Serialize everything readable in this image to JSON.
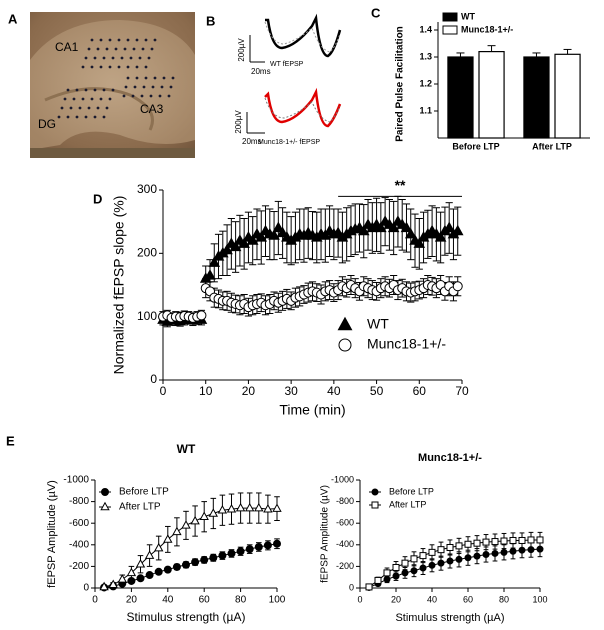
{
  "panel_labels": [
    "A",
    "B",
    "C",
    "D",
    "E"
  ],
  "panel_a": {
    "regions": [
      "CA1",
      "CA3",
      "DG"
    ]
  },
  "panel_b": {
    "scale_bars": [
      {
        "v": "200µV",
        "h": "20ms"
      },
      {
        "v": "200µV",
        "h": "20ms"
      }
    ],
    "trace_labels": [
      "WT fEPSP",
      "Munc18-1+/- fEPSP"
    ]
  },
  "chart_data": [
    {
      "type": "bar",
      "ylabel": "Paired Pulse Facilitation",
      "categories": [
        "Before LTP",
        "After LTP"
      ],
      "series": [
        {
          "name": "WT",
          "color": "#000000",
          "values": [
            1.3,
            1.3
          ],
          "errors": [
            0.015,
            0.015
          ]
        },
        {
          "name": "Munc18-1+/-",
          "color": "#ffffff",
          "values": [
            1.32,
            1.31
          ],
          "errors": [
            0.022,
            0.018
          ]
        }
      ],
      "ylim": [
        1.0,
        1.4
      ],
      "yticks": [
        1.1,
        1.2,
        1.3,
        1.4
      ],
      "legend": "upper left"
    },
    {
      "type": "scatter",
      "ylabel": "Normalized fEPSP slope (%)",
      "xlabel": "Time (min)",
      "x": [
        0,
        1,
        2,
        3,
        4,
        5,
        6,
        7,
        8,
        9,
        10,
        11,
        12,
        13,
        14,
        15,
        16,
        17,
        18,
        19,
        20,
        21,
        22,
        23,
        24,
        25,
        26,
        27,
        28,
        29,
        30,
        31,
        32,
        33,
        34,
        35,
        36,
        37,
        38,
        39,
        40,
        41,
        42,
        43,
        44,
        45,
        46,
        47,
        48,
        49,
        50,
        51,
        52,
        53,
        54,
        55,
        56,
        57,
        58,
        59,
        60,
        61,
        62,
        63,
        64,
        65,
        66,
        67,
        68,
        69
      ],
      "series": [
        {
          "name": "WT",
          "color": "#000000",
          "marker": "triangle",
          "marker_fill": "#000000",
          "values": [
            95,
            92,
            96,
            94,
            93,
            95,
            97,
            94,
            96,
            95,
            160,
            165,
            185,
            195,
            200,
            205,
            215,
            210,
            220,
            215,
            225,
            220,
            230,
            225,
            235,
            230,
            228,
            240,
            232,
            225,
            220,
            225,
            230,
            228,
            232,
            228,
            225,
            230,
            228,
            235,
            230,
            232,
            225,
            230,
            235,
            238,
            240,
            235,
            245,
            240,
            245,
            240,
            250,
            245,
            240,
            250,
            245,
            240,
            230,
            220,
            215,
            225,
            230,
            235,
            230,
            225,
            235,
            240,
            230,
            235
          ],
          "errors": [
            8,
            8,
            8,
            8,
            8,
            8,
            8,
            8,
            8,
            8,
            20,
            25,
            30,
            35,
            35,
            40,
            40,
            40,
            40,
            40,
            40,
            38,
            40,
            42,
            40,
            40,
            38,
            42,
            40,
            40,
            38,
            40,
            40,
            42,
            40,
            38,
            40,
            40,
            42,
            40,
            40,
            38,
            40,
            42,
            40,
            40,
            38,
            42,
            40,
            40,
            42,
            40,
            38,
            40,
            42,
            40,
            40,
            38,
            40,
            42,
            40,
            40,
            38,
            40,
            42,
            40,
            38,
            40,
            40,
            38
          ]
        },
        {
          "name": "Munc18-1+/-",
          "color": "#000000",
          "marker": "circle",
          "marker_fill": "#ffffff",
          "values": [
            100,
            102,
            98,
            100,
            99,
            101,
            100,
            98,
            100,
            102,
            145,
            140,
            130,
            128,
            125,
            125,
            122,
            120,
            118,
            120,
            115,
            118,
            120,
            122,
            118,
            120,
            125,
            122,
            125,
            128,
            125,
            130,
            132,
            135,
            138,
            140,
            138,
            135,
            140,
            142,
            138,
            142,
            148,
            145,
            150,
            145,
            140,
            148,
            145,
            142,
            140,
            145,
            148,
            145,
            150,
            142,
            145,
            140,
            138,
            140,
            142,
            145,
            150,
            148,
            145,
            150,
            140,
            148,
            140,
            148
          ],
          "errors": [
            8,
            8,
            8,
            8,
            8,
            8,
            8,
            8,
            8,
            8,
            15,
            15,
            15,
            14,
            14,
            15,
            15,
            14,
            15,
            15,
            14,
            15,
            15,
            14,
            15,
            15,
            14,
            15,
            15,
            15,
            14,
            15,
            15,
            14,
            15,
            15,
            14,
            15,
            15,
            15,
            14,
            15,
            15,
            14,
            15,
            15,
            14,
            15,
            15,
            15,
            14,
            15,
            15,
            14,
            15,
            15,
            14,
            15,
            15,
            15,
            14,
            15,
            15,
            14,
            15,
            15,
            14,
            15,
            15,
            15
          ]
        }
      ],
      "xlim": [
        0,
        70
      ],
      "xticks": [
        0,
        10,
        20,
        30,
        40,
        50,
        60,
        70
      ],
      "ylim": [
        0,
        300
      ],
      "yticks": [
        0,
        100,
        200,
        300
      ],
      "legend": "lower right",
      "annotation": {
        "text": "**",
        "x": [
          41,
          70
        ],
        "y": 290
      }
    },
    {
      "type": "line",
      "title": "WT",
      "ylabel": "fEPSP Amplitude (µV)",
      "xlabel": "Stimulus strength (µA)",
      "x": [
        5,
        10,
        15,
        20,
        25,
        30,
        35,
        40,
        45,
        50,
        55,
        60,
        65,
        70,
        75,
        80,
        85,
        90,
        95,
        100
      ],
      "series": [
        {
          "name": "Before LTP",
          "color": "#000000",
          "marker": "circle",
          "marker_fill": "#000000",
          "values": [
            -5,
            -15,
            -40,
            -65,
            -90,
            -120,
            -150,
            -170,
            -195,
            -215,
            -240,
            -260,
            -280,
            -300,
            -320,
            -340,
            -360,
            -380,
            -395,
            -410
          ],
          "errors": [
            5,
            8,
            10,
            12,
            15,
            18,
            20,
            22,
            25,
            28,
            30,
            30,
            32,
            35,
            35,
            38,
            40,
            40,
            42,
            45
          ]
        },
        {
          "name": "After LTP",
          "color": "#000000",
          "marker": "triangle",
          "marker_fill": "#ffffff",
          "values": [
            -10,
            -30,
            -80,
            -140,
            -220,
            -300,
            -370,
            -450,
            -520,
            -580,
            -620,
            -660,
            -690,
            -720,
            -730,
            -740,
            -740,
            -740,
            -730,
            -735
          ],
          "errors": [
            10,
            20,
            40,
            60,
            80,
            100,
            110,
            120,
            130,
            130,
            140,
            140,
            140,
            140,
            140,
            140,
            140,
            140,
            130,
            110
          ]
        }
      ],
      "xlim": [
        0,
        100
      ],
      "xticks": [
        0,
        20,
        40,
        60,
        80,
        100
      ],
      "ylim": [
        0,
        -1000
      ],
      "yticks": [
        0,
        -200,
        -400,
        -600,
        -800,
        -1000
      ],
      "legend": "upper left"
    },
    {
      "type": "line",
      "title": "Munc18-1+/-",
      "ylabel": "fEPSP Amplitude (µV)",
      "xlabel": "Stimulus strength (µA)",
      "x": [
        5,
        10,
        15,
        20,
        25,
        30,
        35,
        40,
        45,
        50,
        55,
        60,
        65,
        70,
        75,
        80,
        85,
        90,
        95,
        100
      ],
      "series": [
        {
          "name": "Before LTP",
          "color": "#000000",
          "marker": "circle",
          "marker_fill": "#000000",
          "values": [
            -5,
            -40,
            -80,
            -110,
            -140,
            -160,
            -185,
            -210,
            -230,
            -250,
            -265,
            -280,
            -295,
            -310,
            -320,
            -330,
            -340,
            -350,
            -355,
            -360
          ],
          "errors": [
            5,
            20,
            30,
            40,
            50,
            55,
            60,
            60,
            65,
            65,
            70,
            70,
            70,
            70,
            70,
            70,
            70,
            70,
            70,
            70
          ]
        },
        {
          "name": "After LTP",
          "color": "#000000",
          "marker": "square",
          "marker_fill": "#ffffff",
          "values": [
            -10,
            -70,
            -140,
            -190,
            -230,
            -270,
            -300,
            -330,
            -355,
            -375,
            -390,
            -405,
            -415,
            -425,
            -430,
            -435,
            -440,
            -440,
            -445,
            -445
          ],
          "errors": [
            8,
            30,
            45,
            55,
            60,
            65,
            65,
            70,
            70,
            70,
            70,
            70,
            70,
            70,
            70,
            70,
            70,
            70,
            70,
            70
          ]
        }
      ],
      "xlim": [
        0,
        100
      ],
      "xticks": [
        0,
        20,
        40,
        60,
        80,
        100
      ],
      "ylim": [
        0,
        -1000
      ],
      "yticks": [
        0,
        -200,
        -400,
        -600,
        -800,
        -1000
      ],
      "legend": "upper left"
    }
  ]
}
